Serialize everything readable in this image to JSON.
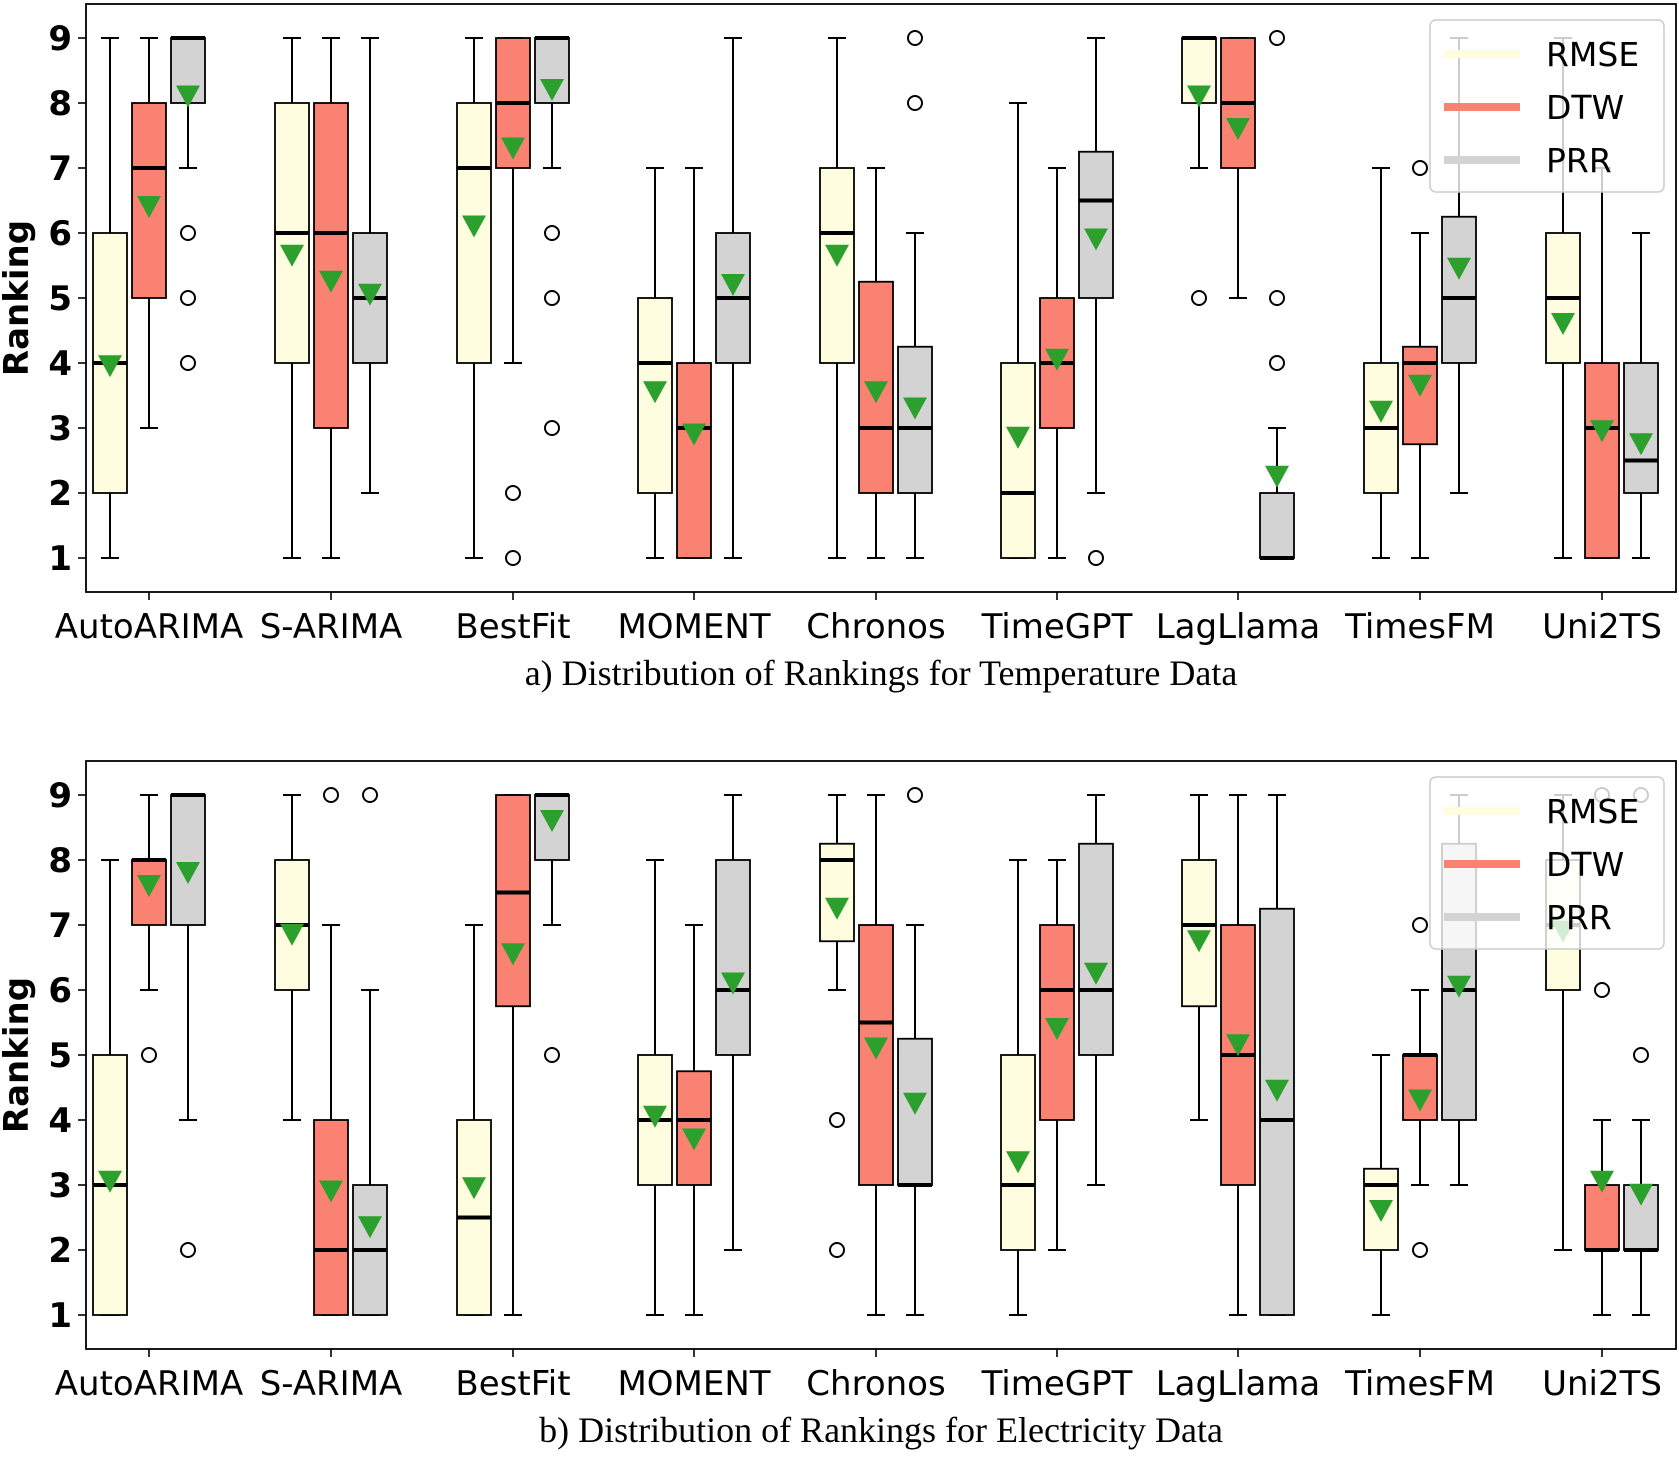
{
  "chart_data": [
    {
      "type": "boxplot",
      "caption": "a) Distribution of Rankings for Temperature Data",
      "ylabel": "Ranking",
      "ylim": [
        0.6,
        9.4
      ],
      "yticks": [
        1,
        2,
        3,
        4,
        5,
        6,
        7,
        8,
        9
      ],
      "categories": [
        "AutoARIMA",
        "S-ARIMA",
        "BestFit",
        "MOMENT",
        "Chronos",
        "TimeGPT",
        "LagLlama",
        "TimesFM",
        "Uni2TS"
      ],
      "legend": [
        {
          "name": "RMSE",
          "color": "#fffde0"
        },
        {
          "name": "DTW",
          "color": "#f98272"
        },
        {
          "name": "PRR",
          "color": "#d3d3d3"
        }
      ],
      "series": [
        {
          "name": "RMSE",
          "boxes": [
            {
              "whislo": 1,
              "q1": 2,
              "med": 4,
              "q3": 6,
              "whishi": 9,
              "mean": 3.95,
              "fliers": []
            },
            {
              "whislo": 1,
              "q1": 4,
              "med": 6,
              "q3": 8,
              "whishi": 9,
              "mean": 5.65,
              "fliers": []
            },
            {
              "whislo": 1,
              "q1": 4,
              "med": 7,
              "q3": 8,
              "whishi": 9,
              "mean": 6.1,
              "fliers": []
            },
            {
              "whislo": 1,
              "q1": 2,
              "med": 4,
              "q3": 5,
              "whishi": 7,
              "mean": 3.55,
              "fliers": []
            },
            {
              "whislo": 1,
              "q1": 4,
              "med": 6,
              "q3": 7,
              "whishi": 9,
              "mean": 5.65,
              "fliers": []
            },
            {
              "whislo": 1,
              "q1": 1,
              "med": 2,
              "q3": 4,
              "whishi": 8,
              "mean": 2.85,
              "fliers": []
            },
            {
              "whislo": 7,
              "q1": 8,
              "med": 9,
              "q3": 9,
              "whishi": 9,
              "mean": 8.1,
              "fliers": [
                5
              ]
            },
            {
              "whislo": 1,
              "q1": 2,
              "med": 3,
              "q3": 4,
              "whishi": 7,
              "mean": 3.25,
              "fliers": []
            },
            {
              "whislo": 1,
              "q1": 4,
              "med": 5,
              "q3": 6,
              "whishi": 9,
              "mean": 4.6,
              "fliers": []
            }
          ]
        },
        {
          "name": "DTW",
          "boxes": [
            {
              "whislo": 3,
              "q1": 5,
              "med": 7,
              "q3": 8,
              "whishi": 9,
              "mean": 6.4,
              "fliers": []
            },
            {
              "whislo": 1,
              "q1": 3,
              "med": 6,
              "q3": 8,
              "whishi": 9,
              "mean": 5.25,
              "fliers": []
            },
            {
              "whislo": 4,
              "q1": 7,
              "med": 8,
              "q3": 9,
              "whishi": 9,
              "mean": 7.3,
              "fliers": [
                2,
                1
              ]
            },
            {
              "whislo": 1,
              "q1": 1,
              "med": 3,
              "q3": 4,
              "whishi": 7,
              "mean": 2.9,
              "fliers": []
            },
            {
              "whislo": 1,
              "q1": 2,
              "med": 3,
              "q3": 5.25,
              "whishi": 7,
              "mean": 3.55,
              "fliers": []
            },
            {
              "whislo": 1,
              "q1": 3,
              "med": 4,
              "q3": 5,
              "whishi": 7,
              "mean": 4.05,
              "fliers": []
            },
            {
              "whislo": 5,
              "q1": 7,
              "med": 8,
              "q3": 9,
              "whishi": 9,
              "mean": 7.6,
              "fliers": []
            },
            {
              "whislo": 1,
              "q1": 2.75,
              "med": 4,
              "q3": 4.25,
              "whishi": 6,
              "mean": 3.65,
              "fliers": [
                7
              ]
            },
            {
              "whislo": 1,
              "q1": 1,
              "med": 3,
              "q3": 4,
              "whishi": 7,
              "mean": 2.95,
              "fliers": []
            }
          ]
        },
        {
          "name": "PRR",
          "boxes": [
            {
              "whislo": 7,
              "q1": 8,
              "med": 9,
              "q3": 9,
              "whishi": 9,
              "mean": 8.1,
              "fliers": [
                6,
                5,
                4
              ]
            },
            {
              "whislo": 2,
              "q1": 4,
              "med": 5,
              "q3": 6,
              "whishi": 9,
              "mean": 5.05,
              "fliers": []
            },
            {
              "whislo": 7,
              "q1": 8,
              "med": 9,
              "q3": 9,
              "whishi": 9,
              "mean": 8.2,
              "fliers": [
                6,
                5,
                3
              ]
            },
            {
              "whislo": 1,
              "q1": 4,
              "med": 5,
              "q3": 6,
              "whishi": 9,
              "mean": 5.2,
              "fliers": []
            },
            {
              "whislo": 1,
              "q1": 2,
              "med": 3,
              "q3": 4.25,
              "whishi": 6,
              "mean": 3.3,
              "fliers": [
                9,
                8
              ]
            },
            {
              "whislo": 2,
              "q1": 5,
              "med": 6.5,
              "q3": 7.25,
              "whishi": 9,
              "mean": 5.9,
              "fliers": [
                1
              ]
            },
            {
              "whislo": 1,
              "q1": 1,
              "med": 1,
              "q3": 2,
              "whishi": 3,
              "mean": 2.25,
              "fliers": [
                9,
                5,
                4
              ]
            },
            {
              "whislo": 2,
              "q1": 4,
              "med": 5,
              "q3": 6.25,
              "whishi": 9,
              "mean": 5.45,
              "fliers": []
            },
            {
              "whislo": 1,
              "q1": 2,
              "med": 2.5,
              "q3": 4,
              "whishi": 6,
              "mean": 2.75,
              "fliers": []
            }
          ]
        }
      ]
    },
    {
      "type": "boxplot",
      "caption": "b) Distribution of Rankings for Electricity Data",
      "ylabel": "Ranking",
      "ylim": [
        0.6,
        9.4
      ],
      "yticks": [
        1,
        2,
        3,
        4,
        5,
        6,
        7,
        8,
        9
      ],
      "categories": [
        "AutoARIMA",
        "S-ARIMA",
        "BestFit",
        "MOMENT",
        "Chronos",
        "TimeGPT",
        "LagLlama",
        "TimesFM",
        "Uni2TS"
      ],
      "legend": [
        {
          "name": "RMSE",
          "color": "#fffde0"
        },
        {
          "name": "DTW",
          "color": "#f98272"
        },
        {
          "name": "PRR",
          "color": "#d3d3d3"
        }
      ],
      "series": [
        {
          "name": "RMSE",
          "boxes": [
            {
              "whislo": 1,
              "q1": 1,
              "med": 3,
              "q3": 5,
              "whishi": 8,
              "mean": 3.05,
              "fliers": []
            },
            {
              "whislo": 4,
              "q1": 6,
              "med": 7,
              "q3": 8,
              "whishi": 9,
              "mean": 6.85,
              "fliers": []
            },
            {
              "whislo": 1,
              "q1": 1,
              "med": 2.5,
              "q3": 4,
              "whishi": 7,
              "mean": 2.95,
              "fliers": []
            },
            {
              "whislo": 1,
              "q1": 3,
              "med": 4,
              "q3": 5,
              "whishi": 8,
              "mean": 4.05,
              "fliers": []
            },
            {
              "whislo": 6,
              "q1": 6.75,
              "med": 8,
              "q3": 8.25,
              "whishi": 9,
              "mean": 7.25,
              "fliers": [
                4,
                2
              ]
            },
            {
              "whislo": 1,
              "q1": 2,
              "med": 3,
              "q3": 5,
              "whishi": 8,
              "mean": 3.35,
              "fliers": []
            },
            {
              "whislo": 4,
              "q1": 5.75,
              "med": 7,
              "q3": 8,
              "whishi": 9,
              "mean": 6.75,
              "fliers": []
            },
            {
              "whislo": 1,
              "q1": 2,
              "med": 3,
              "q3": 3.25,
              "whishi": 5,
              "mean": 2.6,
              "fliers": []
            },
            {
              "whislo": 2,
              "q1": 6,
              "med": 7,
              "q3": 8,
              "whishi": 9,
              "mean": 6.9,
              "fliers": []
            }
          ]
        },
        {
          "name": "DTW",
          "boxes": [
            {
              "whislo": 6,
              "q1": 7,
              "med": 8,
              "q3": 8,
              "whishi": 9,
              "mean": 7.6,
              "fliers": [
                5
              ]
            },
            {
              "whislo": 1,
              "q1": 1,
              "med": 2,
              "q3": 4,
              "whishi": 7,
              "mean": 2.9,
              "fliers": [
                9
              ]
            },
            {
              "whislo": 1,
              "q1": 5.75,
              "med": 7.5,
              "q3": 9,
              "whishi": 9,
              "mean": 6.55,
              "fliers": []
            },
            {
              "whislo": 1,
              "q1": 3,
              "med": 4,
              "q3": 4.75,
              "whishi": 7,
              "mean": 3.7,
              "fliers": []
            },
            {
              "whislo": 1,
              "q1": 3,
              "med": 5.5,
              "q3": 7,
              "whishi": 9,
              "mean": 5.1,
              "fliers": []
            },
            {
              "whislo": 2,
              "q1": 4,
              "med": 6,
              "q3": 7,
              "whishi": 8,
              "mean": 5.4,
              "fliers": []
            },
            {
              "whislo": 1,
              "q1": 3,
              "med": 5,
              "q3": 7,
              "whishi": 9,
              "mean": 5.15,
              "fliers": []
            },
            {
              "whislo": 3,
              "q1": 4,
              "med": 5,
              "q3": 5,
              "whishi": 6,
              "mean": 4.3,
              "fliers": [
                7,
                2
              ]
            },
            {
              "whislo": 1,
              "q1": 2,
              "med": 2,
              "q3": 3,
              "whishi": 4,
              "mean": 3.05,
              "fliers": [
                9,
                6
              ]
            }
          ]
        },
        {
          "name": "PRR",
          "boxes": [
            {
              "whislo": 4,
              "q1": 7,
              "med": 9,
              "q3": 9,
              "whishi": 9,
              "mean": 7.8,
              "fliers": [
                2
              ]
            },
            {
              "whislo": 1,
              "q1": 1,
              "med": 2,
              "q3": 3,
              "whishi": 6,
              "mean": 2.35,
              "fliers": [
                9
              ]
            },
            {
              "whislo": 7,
              "q1": 8,
              "med": 9,
              "q3": 9,
              "whishi": 9,
              "mean": 8.6,
              "fliers": [
                5
              ]
            },
            {
              "whislo": 2,
              "q1": 5,
              "med": 6,
              "q3": 8,
              "whishi": 9,
              "mean": 6.1,
              "fliers": []
            },
            {
              "whislo": 1,
              "q1": 3,
              "med": 3,
              "q3": 5.25,
              "whishi": 7,
              "mean": 4.25,
              "fliers": [
                9
              ]
            },
            {
              "whislo": 3,
              "q1": 5,
              "med": 6,
              "q3": 8.25,
              "whishi": 9,
              "mean": 6.25,
              "fliers": []
            },
            {
              "whislo": 1,
              "q1": 1,
              "med": 4,
              "q3": 7.25,
              "whishi": 9,
              "mean": 4.45,
              "fliers": []
            },
            {
              "whislo": 3,
              "q1": 4,
              "med": 6,
              "q3": 8.25,
              "whishi": 9,
              "mean": 6.05,
              "fliers": []
            },
            {
              "whislo": 1,
              "q1": 2,
              "med": 2,
              "q3": 3,
              "whishi": 4,
              "mean": 2.85,
              "fliers": [
                9,
                5
              ]
            }
          ]
        }
      ]
    }
  ]
}
